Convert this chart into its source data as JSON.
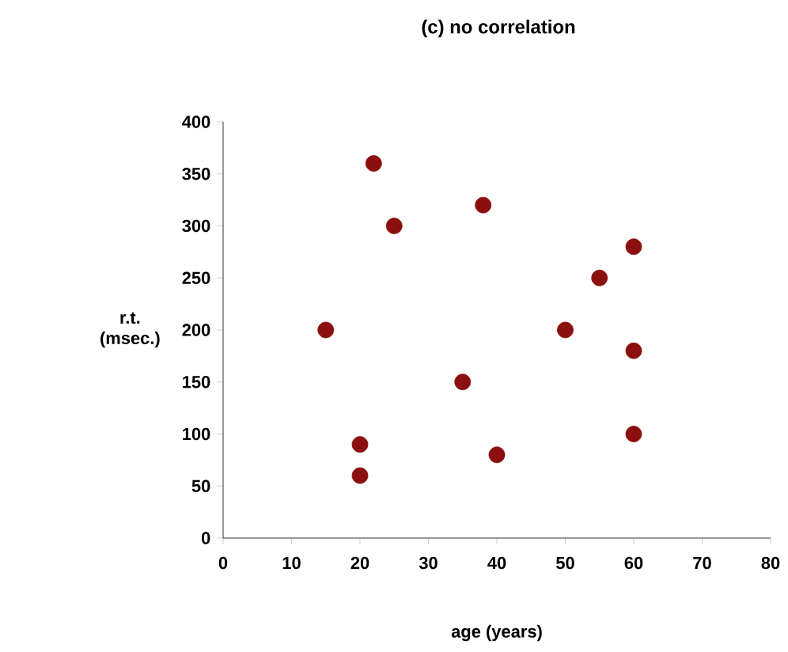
{
  "chart_data": {
    "type": "scatter",
    "title": "(c) no correlation",
    "xlabel": "age (years)",
    "ylabel": "r.t. (msec.)",
    "x": [
      15,
      22,
      25,
      38,
      20,
      20,
      35,
      40,
      50,
      55,
      60,
      60,
      60
    ],
    "values": [
      200,
      360,
      300,
      320,
      90,
      60,
      150,
      80,
      200,
      250,
      280,
      180,
      100
    ],
    "color": "#8b0f0f",
    "marker": "circle",
    "xlim": [
      0,
      80
    ],
    "xticks": [
      0,
      10,
      20,
      30,
      40,
      50,
      60,
      70,
      80
    ],
    "ylim": [
      0,
      400
    ],
    "yticks": [
      0,
      50,
      100,
      150,
      200,
      250,
      300,
      350,
      400
    ]
  }
}
